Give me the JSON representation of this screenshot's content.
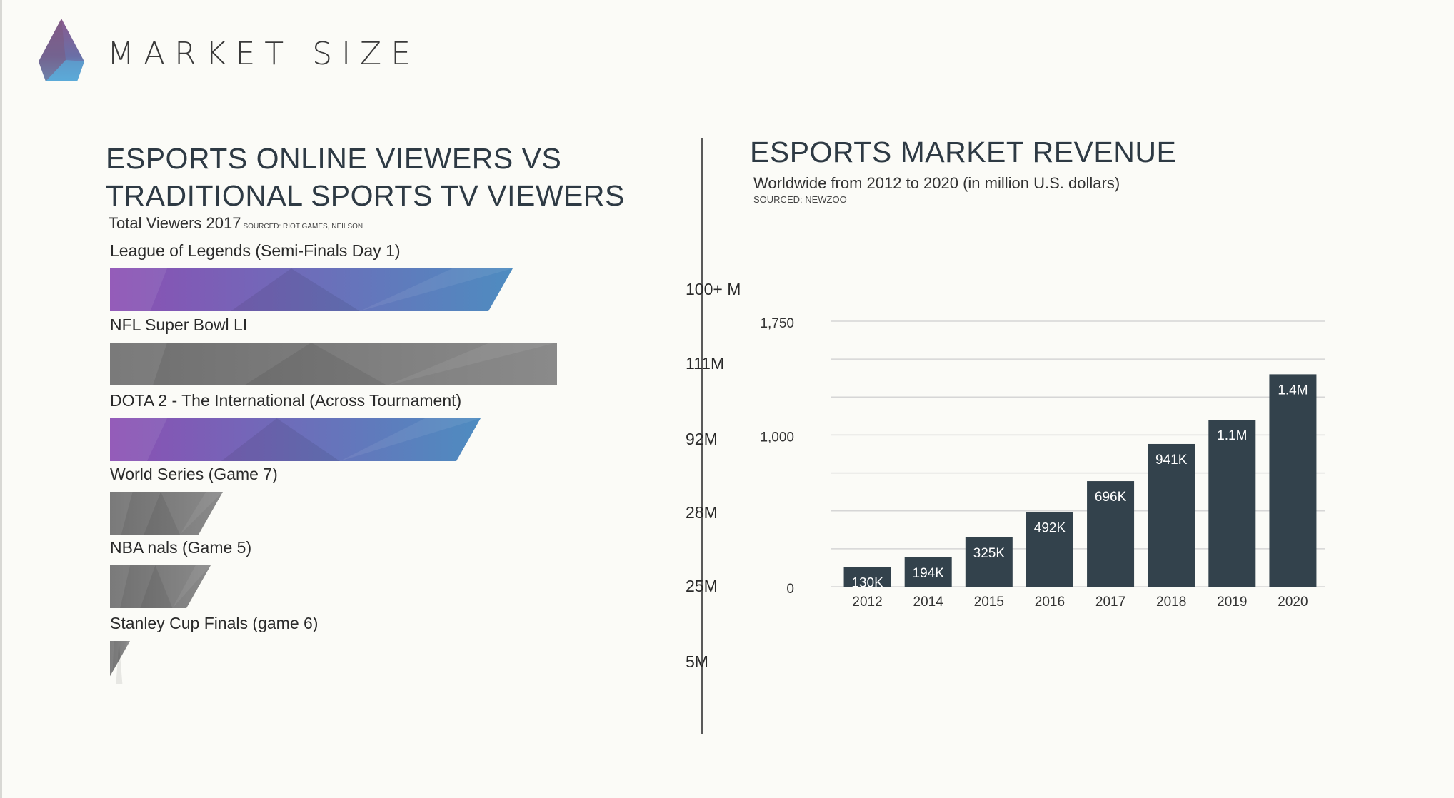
{
  "header": {
    "title": "MARKET SIZE"
  },
  "colors": {
    "esports_gradient": [
      "#8b4fb3",
      "#4e8cc0"
    ],
    "traditional_gradient": [
      "#6f6f6f",
      "#8a8a8a"
    ],
    "revenue_bar": "#33424c"
  },
  "viewers": {
    "title_line1": "ESPORTS ONLINE VIEWERS VS",
    "title_line2": "TRADITIONAL SPORTS TV VIEWERS",
    "subtitle": "Total Viewers 2017",
    "source": "SOURCED: RIOT GAMES, NEILSON"
  },
  "revenue": {
    "title": "ESPORTS MARKET REVENUE",
    "subtitle": "Worldwide from 2012 to 2020 (in million U.S.  dollars)",
    "source": "SOURCED: NEWZOO"
  },
  "chart_data": [
    {
      "type": "bar",
      "orientation": "horizontal",
      "title": "ESPORTS ONLINE VIEWERS VS TRADITIONAL SPORTS TV VIEWERS",
      "subtitle": "Total Viewers 2017",
      "categories": [
        "League of Legends (Semi-Finals Day 1)",
        "NFL Super Bowl LI",
        "DOTA 2 - The International (Across Tournament)",
        "World Series (Game 7)",
        "NBA nals (Game 5)",
        "Stanley Cup Finals (game 6)"
      ],
      "values": [
        100,
        111,
        92,
        28,
        25,
        5
      ],
      "value_labels": [
        "100+ M",
        "111M",
        "92M",
        "28M",
        "25M",
        "5M"
      ],
      "kinds": [
        "esports",
        "traditional",
        "esports",
        "traditional",
        "traditional",
        "traditional"
      ]
    },
    {
      "type": "bar",
      "title": "ESPORTS MARKET REVENUE",
      "categories": [
        "2012",
        "2014",
        "2015",
        "2016",
        "2017",
        "2018",
        "2019",
        "2020"
      ],
      "values": [
        130,
        194,
        325,
        492,
        696,
        941,
        1100,
        1400
      ],
      "data_labels": [
        "130K",
        "194K",
        "325K",
        "492K",
        "696K",
        "941K",
        "1.1M",
        "1.4M"
      ],
      "y_ticks": [
        0,
        1000,
        1750
      ],
      "y_tick_labels": [
        "0",
        "1,000",
        "1,750"
      ],
      "ylim": [
        0,
        1750
      ],
      "grid": true
    }
  ]
}
